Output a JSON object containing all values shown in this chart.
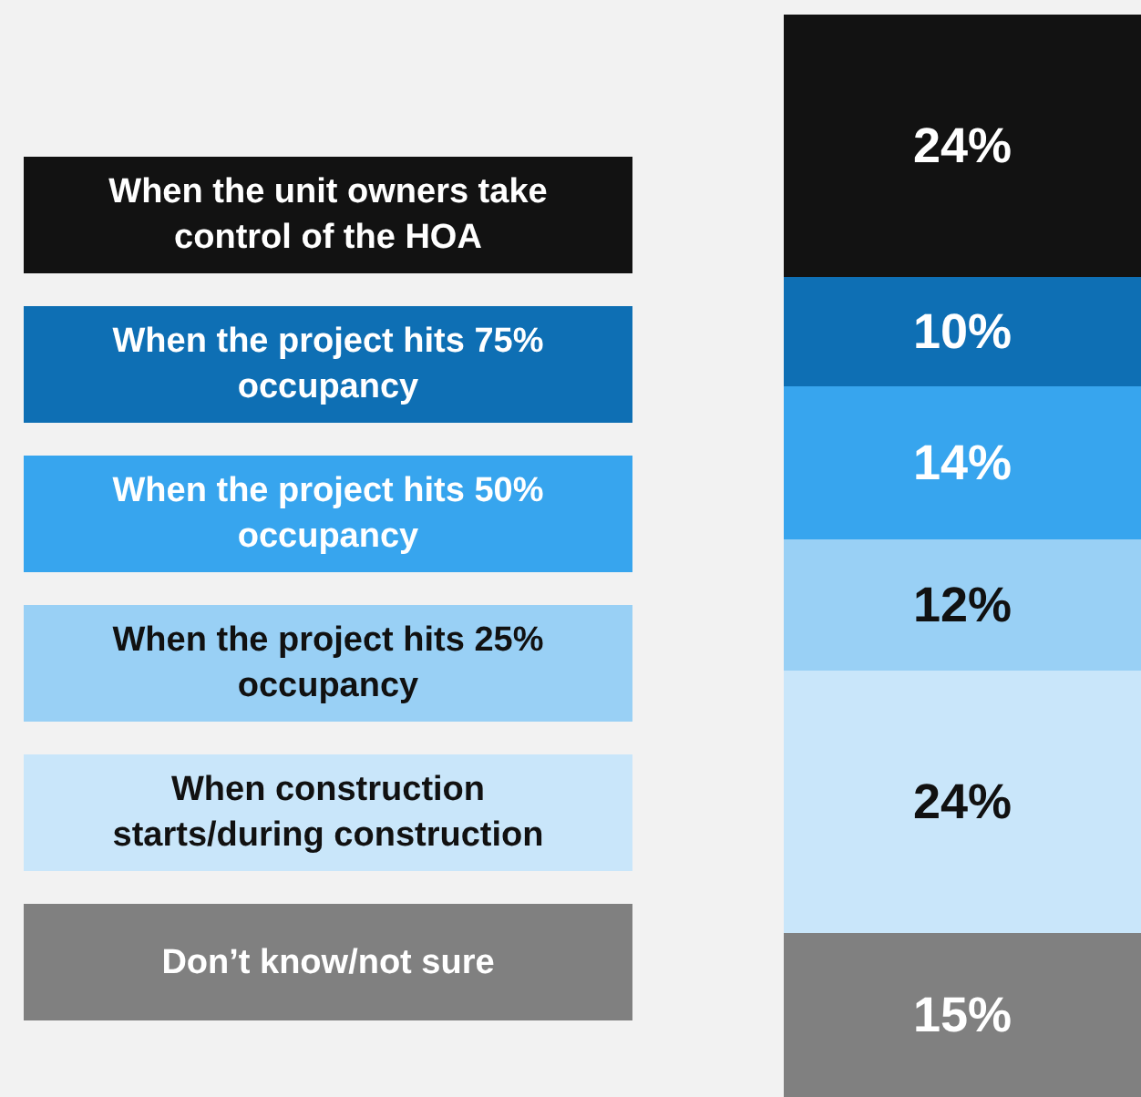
{
  "chart_data": {
    "type": "bar",
    "stacked": true,
    "categories": [
      null
    ],
    "legend": "left",
    "series": [
      {
        "name": "Don’t know/not sure",
        "color": "#808080",
        "values": [
          15
        ],
        "value_labels": [
          "15%"
        ]
      },
      {
        "name": "When construction starts/during construction",
        "color": "#c9e6fa",
        "values": [
          24
        ],
        "value_labels": [
          "24%"
        ]
      },
      {
        "name": "When the project hits 25% occupancy",
        "color": "#99d0f5",
        "values": [
          12
        ],
        "value_labels": [
          "12%"
        ]
      },
      {
        "name": "When the project hits 50% occupancy",
        "color": "#37a5ee",
        "values": [
          14
        ],
        "value_labels": [
          "14%"
        ]
      },
      {
        "name": "When the project hits 75% occupancy",
        "color": "#0e6fb4",
        "values": [
          10
        ],
        "value_labels": [
          "10%"
        ]
      },
      {
        "name": "When the unit owners take control of the HOA",
        "color": "#121212",
        "values": [
          24
        ],
        "value_labels": [
          "24%"
        ]
      }
    ]
  }
}
